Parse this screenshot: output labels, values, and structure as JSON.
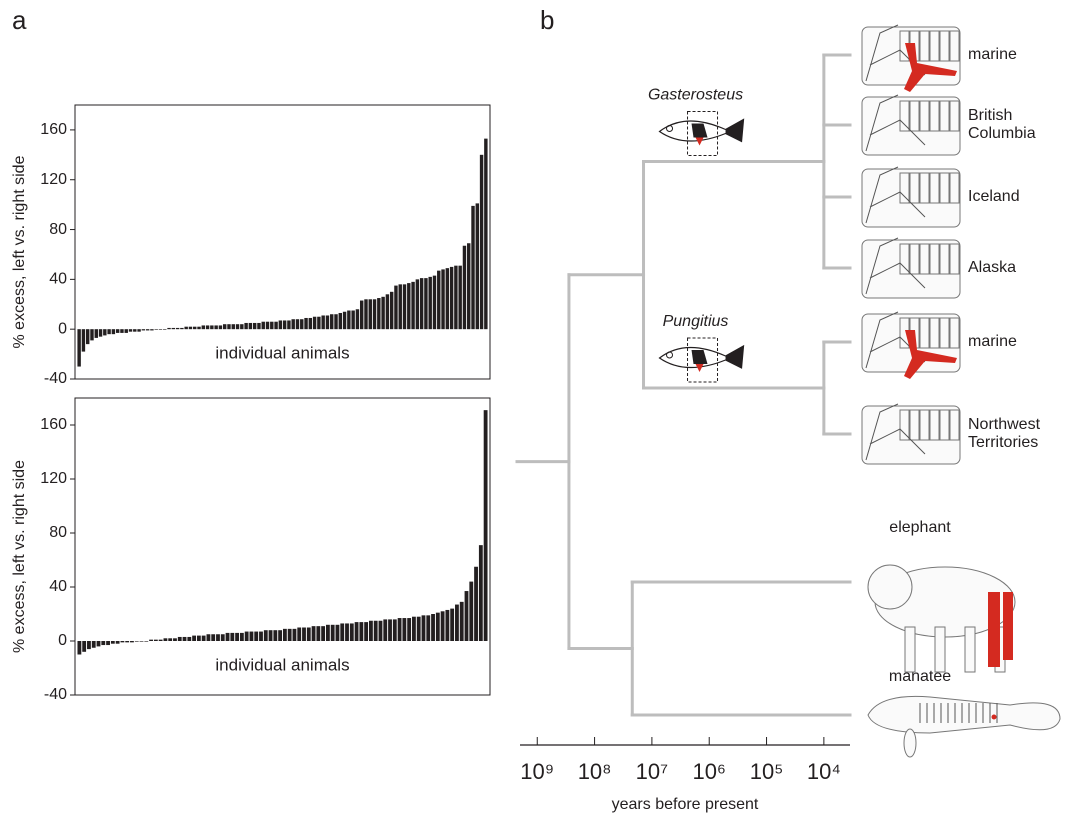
{
  "chart_data": [
    {
      "type": "bar",
      "panel": "a",
      "ylabel": "% excess, left vs. right side",
      "annotation": "individual animals",
      "color": "#231f20",
      "ylim": [
        -40,
        180
      ],
      "yticks": [
        -40,
        0,
        40,
        80,
        120,
        160
      ],
      "values": [
        -30,
        -18,
        -12,
        -9,
        -7,
        -6,
        -5,
        -4,
        -4,
        -3,
        -3,
        -3,
        -2,
        -2,
        -2,
        -1,
        -1,
        -1,
        0,
        0,
        0,
        1,
        1,
        1,
        1,
        2,
        2,
        2,
        2,
        3,
        3,
        3,
        3,
        3,
        4,
        4,
        4,
        4,
        4,
        5,
        5,
        5,
        5,
        6,
        6,
        6,
        6,
        7,
        7,
        7,
        8,
        8,
        8,
        9,
        9,
        10,
        10,
        11,
        11,
        12,
        12,
        13,
        14,
        15,
        15,
        16,
        23,
        24,
        24,
        24,
        25,
        26,
        28,
        30,
        35,
        36,
        36,
        37,
        38,
        40,
        41,
        41,
        42,
        43,
        47,
        48,
        49,
        50,
        51,
        51,
        67,
        69,
        99,
        101,
        140,
        153
      ]
    },
    {
      "type": "bar",
      "ylabel": "% excess, left vs. right side",
      "annotation": "individual animals",
      "color": "#231f20",
      "ylim": [
        -40,
        180
      ],
      "yticks": [
        -40,
        0,
        40,
        80,
        120,
        160
      ],
      "values": [
        -10,
        -8,
        -6,
        -5,
        -4,
        -3,
        -3,
        -2,
        -2,
        -1,
        -1,
        -1,
        0,
        0,
        0,
        1,
        1,
        1,
        2,
        2,
        2,
        3,
        3,
        3,
        4,
        4,
        4,
        5,
        5,
        5,
        5,
        6,
        6,
        6,
        6,
        7,
        7,
        7,
        7,
        8,
        8,
        8,
        8,
        9,
        9,
        9,
        10,
        10,
        10,
        11,
        11,
        11,
        12,
        12,
        12,
        13,
        13,
        13,
        14,
        14,
        14,
        15,
        15,
        15,
        16,
        16,
        16,
        17,
        17,
        17,
        18,
        18,
        19,
        19,
        20,
        21,
        22,
        23,
        24,
        27,
        29,
        37,
        44,
        55,
        71,
        171
      ]
    },
    {
      "type": "tree",
      "panel": "b",
      "xlabel": "years before present",
      "log_scale": true,
      "color": "#bdbdbd",
      "xlim": [
        2000000000,
        3500
      ],
      "xticks": [
        {
          "value": 1000000000,
          "label": "10⁹"
        },
        {
          "value": 100000000,
          "label": "10⁸"
        },
        {
          "value": 10000000,
          "label": "10⁷"
        },
        {
          "value": 1000000,
          "label": "10⁶"
        },
        {
          "value": 100000,
          "label": "10⁵"
        },
        {
          "value": 10000,
          "label": "10⁴"
        }
      ],
      "root": {
        "time": 280000000,
        "children": [
          {
            "time": 14000000,
            "children": [
              {
                "time": 10000,
                "label": "Gasterosteus",
                "children": [
                  {
                    "label": "marine"
                  },
                  {
                    "label": "British Columbia"
                  },
                  {
                    "label": "Iceland"
                  },
                  {
                    "label": "Alaska"
                  }
                ]
              },
              {
                "time": 10000,
                "label": "Pungitius",
                "children": [
                  {
                    "label": "marine"
                  },
                  {
                    "label": "Northwest Territories"
                  }
                ]
              }
            ]
          },
          {
            "time": 22000000,
            "children": [
              {
                "label": "elephant"
              },
              {
                "label": "manatee"
              }
            ]
          }
        ]
      }
    }
  ]
}
